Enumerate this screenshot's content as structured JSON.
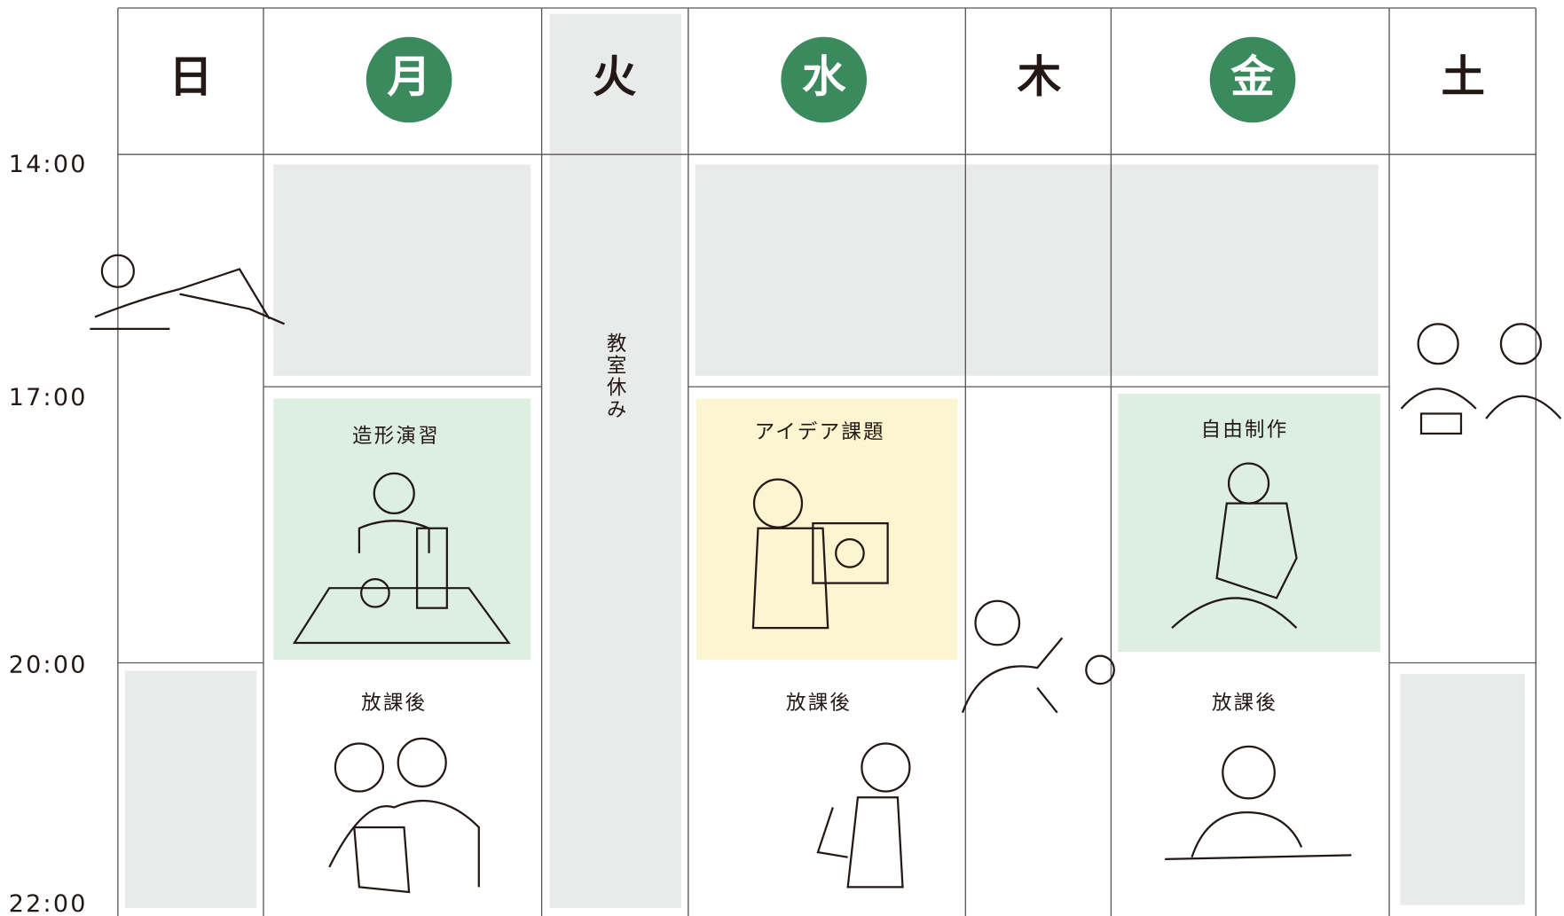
{
  "header": {
    "days": [
      "日",
      "月",
      "火",
      "水",
      "木",
      "金",
      "土"
    ]
  },
  "times": [
    "14:00",
    "17:00",
    "20:00",
    "22:00"
  ],
  "closed_note": "教室休み",
  "classes": [
    "造形演習",
    "アイデア課題",
    "自由制作"
  ],
  "after_school": [
    "放課後",
    "放課後",
    "放課後"
  ]
}
